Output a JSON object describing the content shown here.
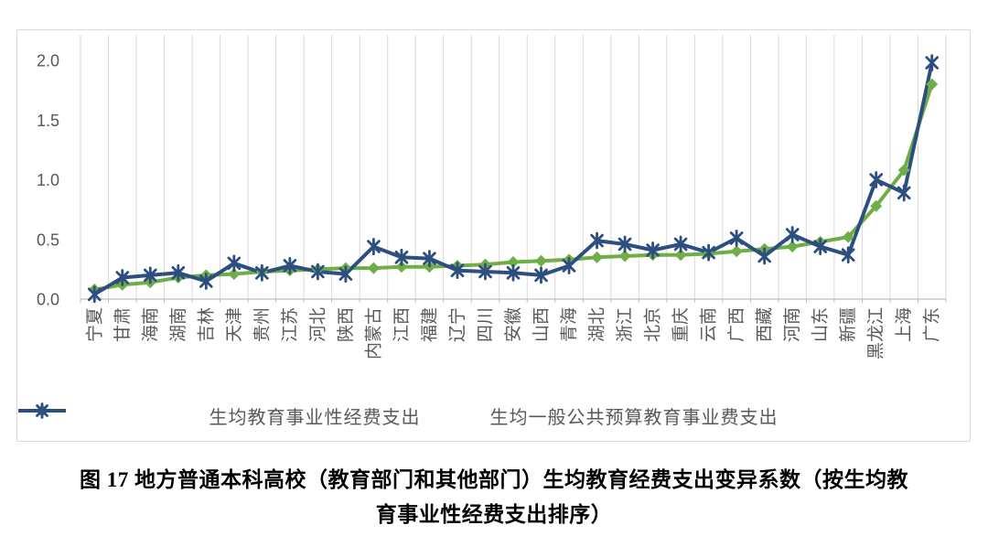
{
  "chart_data": {
    "type": "line",
    "title": "",
    "xlabel": "",
    "ylabel": "",
    "categories": [
      "宁夏",
      "甘肃",
      "海南",
      "湖南",
      "吉林",
      "天津",
      "贵州",
      "江苏",
      "河北",
      "陕西",
      "内蒙古",
      "江西",
      "福建",
      "辽宁",
      "四川",
      "安徽",
      "山西",
      "青海",
      "湖北",
      "浙江",
      "北京",
      "重庆",
      "云南",
      "广西",
      "西藏",
      "河南",
      "山东",
      "新疆",
      "黑龙江",
      "上海",
      "广东"
    ],
    "series": [
      {
        "name": "生均教育事业性经费支出",
        "marker": "diamond",
        "color": "#6fad47",
        "values": [
          0.08,
          0.12,
          0.14,
          0.18,
          0.2,
          0.21,
          0.23,
          0.24,
          0.25,
          0.26,
          0.26,
          0.27,
          0.27,
          0.28,
          0.29,
          0.31,
          0.32,
          0.33,
          0.35,
          0.36,
          0.37,
          0.37,
          0.38,
          0.4,
          0.42,
          0.44,
          0.48,
          0.52,
          0.78,
          1.08,
          1.8
        ]
      },
      {
        "name": "生均一般公共预算教育事业费支出",
        "marker": "asterisk",
        "color": "#2d4f80",
        "values": [
          0.04,
          0.18,
          0.2,
          0.22,
          0.15,
          0.3,
          0.22,
          0.28,
          0.23,
          0.21,
          0.44,
          0.35,
          0.34,
          0.24,
          0.23,
          0.22,
          0.2,
          0.28,
          0.49,
          0.46,
          0.41,
          0.46,
          0.39,
          0.51,
          0.36,
          0.54,
          0.44,
          0.37,
          1.0,
          0.89,
          1.98
        ]
      }
    ],
    "ylim": [
      0,
      2.0
    ],
    "yticks": [
      {
        "value": 0.0,
        "label": "0.0"
      },
      {
        "value": 0.5,
        "label": "0.5"
      },
      {
        "value": 1.0,
        "label": "1.0"
      },
      {
        "value": 1.5,
        "label": "1.5"
      },
      {
        "value": 2.0,
        "label": "2.0"
      }
    ],
    "grid": "vertical",
    "legend_position": "bottom"
  },
  "caption": {
    "line1": "图 17 地方普通本科高校（教育部门和其他部门）生均教育经费支出变异系数（按生均教",
    "line2": "育事业性经费支出排序）"
  },
  "colors": {
    "grid": "#d9d9d9",
    "axis": "#bfbfbf",
    "tick_text": "#595959",
    "border": "#d9d9d9",
    "background": "#ffffff"
  }
}
